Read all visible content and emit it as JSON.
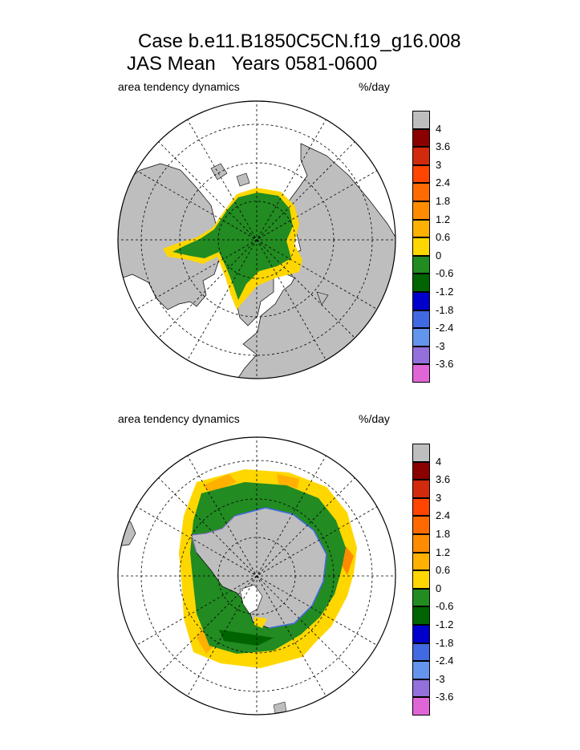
{
  "title_line1": "Case b.e11.B1850C5CN.f19_g16.008",
  "title_line2": "JAS Mean   Years 0581-0600",
  "panels": [
    {
      "id": "north",
      "label": "area tendency dynamics",
      "units": "%/day"
    },
    {
      "id": "south",
      "label": "area tendency dynamics",
      "units": "%/day"
    }
  ],
  "colorbar": {
    "colors": [
      "#bebebe",
      "#8b0000",
      "#d22a0c",
      "#ff4500",
      "#ff6a00",
      "#ff8c00",
      "#ffb000",
      "#ffd700",
      "#228b22",
      "#006400",
      "#0000cd",
      "#4169e1",
      "#6495ed",
      "#9370db",
      "#e066d8"
    ],
    "labels": [
      "4",
      "3.6",
      "3",
      "2.4",
      "1.8",
      "1.2",
      "0.6",
      "0",
      "-0.6",
      "-1.2",
      "-1.8",
      "-2.4",
      "-3",
      "-3.6"
    ]
  },
  "colors": {
    "land": "#bebebe",
    "ocean": "#ffffff",
    "outline": "#000000"
  }
}
